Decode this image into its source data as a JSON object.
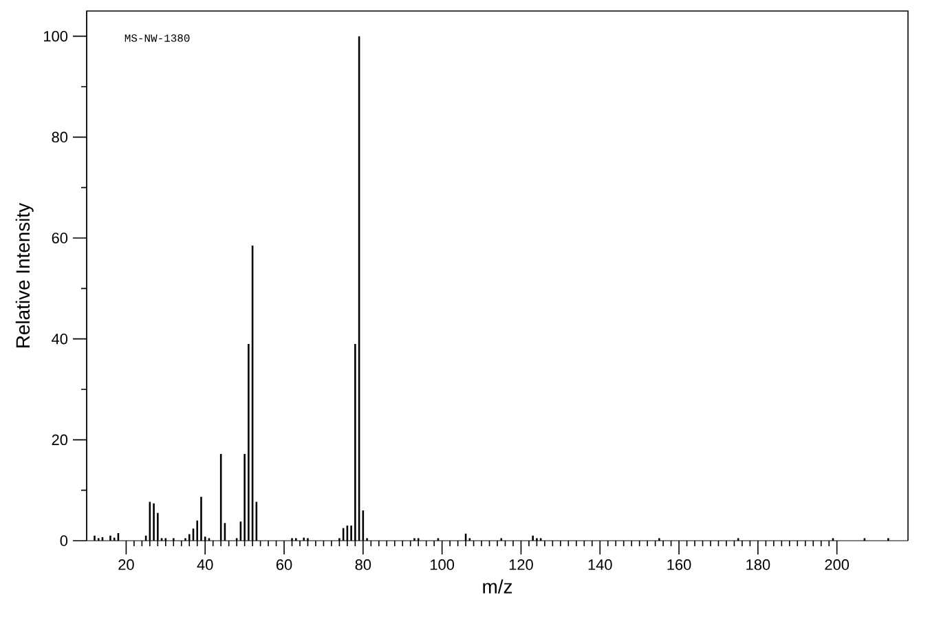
{
  "chart_data": {
    "type": "bar",
    "xlabel": "m/z",
    "ylabel": "Relative Intensity",
    "annotations": [
      "MS-NW-1380"
    ],
    "color": "#000000",
    "x": [
      12,
      13,
      14,
      16,
      17,
      18,
      25,
      26,
      27,
      28,
      29,
      30,
      32,
      35,
      36,
      37,
      38,
      39,
      40,
      41,
      44,
      45,
      48,
      49,
      50,
      51,
      52,
      53,
      62,
      63,
      65,
      66,
      74,
      75,
      76,
      77,
      78,
      79,
      80,
      81,
      93,
      94,
      99,
      106,
      107,
      115,
      123,
      124,
      125,
      155,
      175,
      199,
      207,
      213
    ],
    "values": [
      1.0,
      0.5,
      0.7,
      1.0,
      0.6,
      1.5,
      1.0,
      7.7,
      7.4,
      5.5,
      0.5,
      0.5,
      0.5,
      0.5,
      1.3,
      2.4,
      4.0,
      8.7,
      0.8,
      0.5,
      17.2,
      3.5,
      0.5,
      3.8,
      17.2,
      39,
      58.5,
      7.7,
      0.5,
      0.5,
      0.6,
      0.5,
      0.5,
      2.5,
      3.0,
      3.0,
      39,
      100,
      6.0,
      0.5,
      0.5,
      0.5,
      0.5,
      1.4,
      0.5,
      0.5,
      1.0,
      0.5,
      0.5,
      0.5,
      0.5,
      0.5,
      0.5,
      0.5
    ],
    "xlim": [
      10,
      218
    ],
    "ylim": [
      0,
      105
    ],
    "xticks": [
      20,
      40,
      60,
      80,
      100,
      120,
      140,
      160,
      180,
      200
    ],
    "yticks": [
      0,
      20,
      40,
      60,
      80,
      100
    ],
    "grid": false
  }
}
